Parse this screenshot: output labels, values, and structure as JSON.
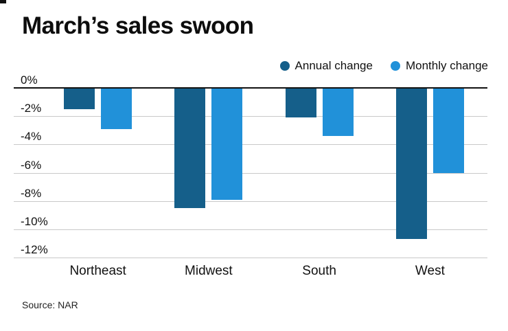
{
  "title": "March’s sales swoon",
  "source": "Source: NAR",
  "legend": [
    {
      "label": "Annual change",
      "color": "#155f8a"
    },
    {
      "label": "Monthly change",
      "color": "#2191d9"
    }
  ],
  "chart_data": {
    "type": "bar",
    "title": "March’s sales swoon",
    "categories": [
      "Northeast",
      "Midwest",
      "South",
      "West"
    ],
    "series": [
      {
        "name": "Annual change",
        "color": "#155f8a",
        "values": [
          -1.5,
          -8.5,
          -2.1,
          -10.7
        ]
      },
      {
        "name": "Monthly change",
        "color": "#2191d9",
        "values": [
          -2.9,
          -7.9,
          -3.4,
          -6.0
        ]
      }
    ],
    "xlabel": "",
    "ylabel": "",
    "ylim": [
      -12,
      0
    ],
    "yticks": [
      0,
      -2,
      -4,
      -6,
      -8,
      -10,
      -12
    ],
    "ytick_labels": [
      "0%",
      "-2%",
      "-4%",
      "-6%",
      "-8%",
      "-10%",
      "-12%"
    ],
    "grid": true,
    "legend_position": "top-right",
    "colors": {
      "grid_line": "#c9c9c9",
      "zero_line": "#111111",
      "background": "#ffffff",
      "text": "#111111"
    }
  }
}
